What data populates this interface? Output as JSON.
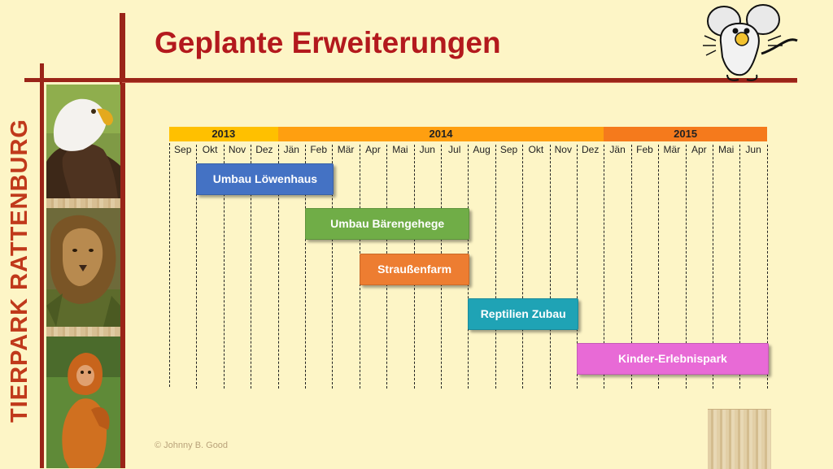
{
  "side_text": "TIERPARK RATTENBURG",
  "title": "Geplante Erweiterungen",
  "copyright": "© Johnny B. Good",
  "images": [
    {
      "name": "eagle-photo",
      "depicts": "eagle"
    },
    {
      "name": "lion-photo",
      "depicts": "lion"
    },
    {
      "name": "monkey-photo",
      "depicts": "monkey"
    },
    {
      "name": "mouse-mascot",
      "depicts": "cartoon mouse"
    }
  ],
  "timeline": {
    "years": [
      {
        "label": "2013",
        "start": 0,
        "span": 4,
        "color": "#ffc000"
      },
      {
        "label": "2014",
        "start": 4,
        "span": 12,
        "color": "#ff9f10"
      },
      {
        "label": "2015",
        "start": 16,
        "span": 6,
        "color": "#f57a1c"
      }
    ],
    "months": [
      "Sep",
      "Okt",
      "Nov",
      "Dez",
      "Jän",
      "Feb",
      "Mär",
      "Apr",
      "Mai",
      "Jun",
      "Jul",
      "Aug",
      "Sep",
      "Okt",
      "Nov",
      "Dez",
      "Jän",
      "Feb",
      "Mär",
      "Apr",
      "Mai",
      "Jun"
    ],
    "tasks": [
      {
        "label": "Umbau Löwenhaus",
        "start": 1,
        "end": 6,
        "color": "#4472c4"
      },
      {
        "label": "Umbau Bärengehege",
        "start": 5,
        "end": 11,
        "color": "#70ad47"
      },
      {
        "label": "Straußenfarm",
        "start": 7,
        "end": 11,
        "color": "#ed7d31"
      },
      {
        "label": "Reptilien Zubau",
        "start": 11,
        "end": 15,
        "color": "#1fa3b5"
      },
      {
        "label": "Kinder-Erlebnispark",
        "start": 15,
        "end": 22,
        "color": "#e86ad6"
      }
    ]
  }
}
